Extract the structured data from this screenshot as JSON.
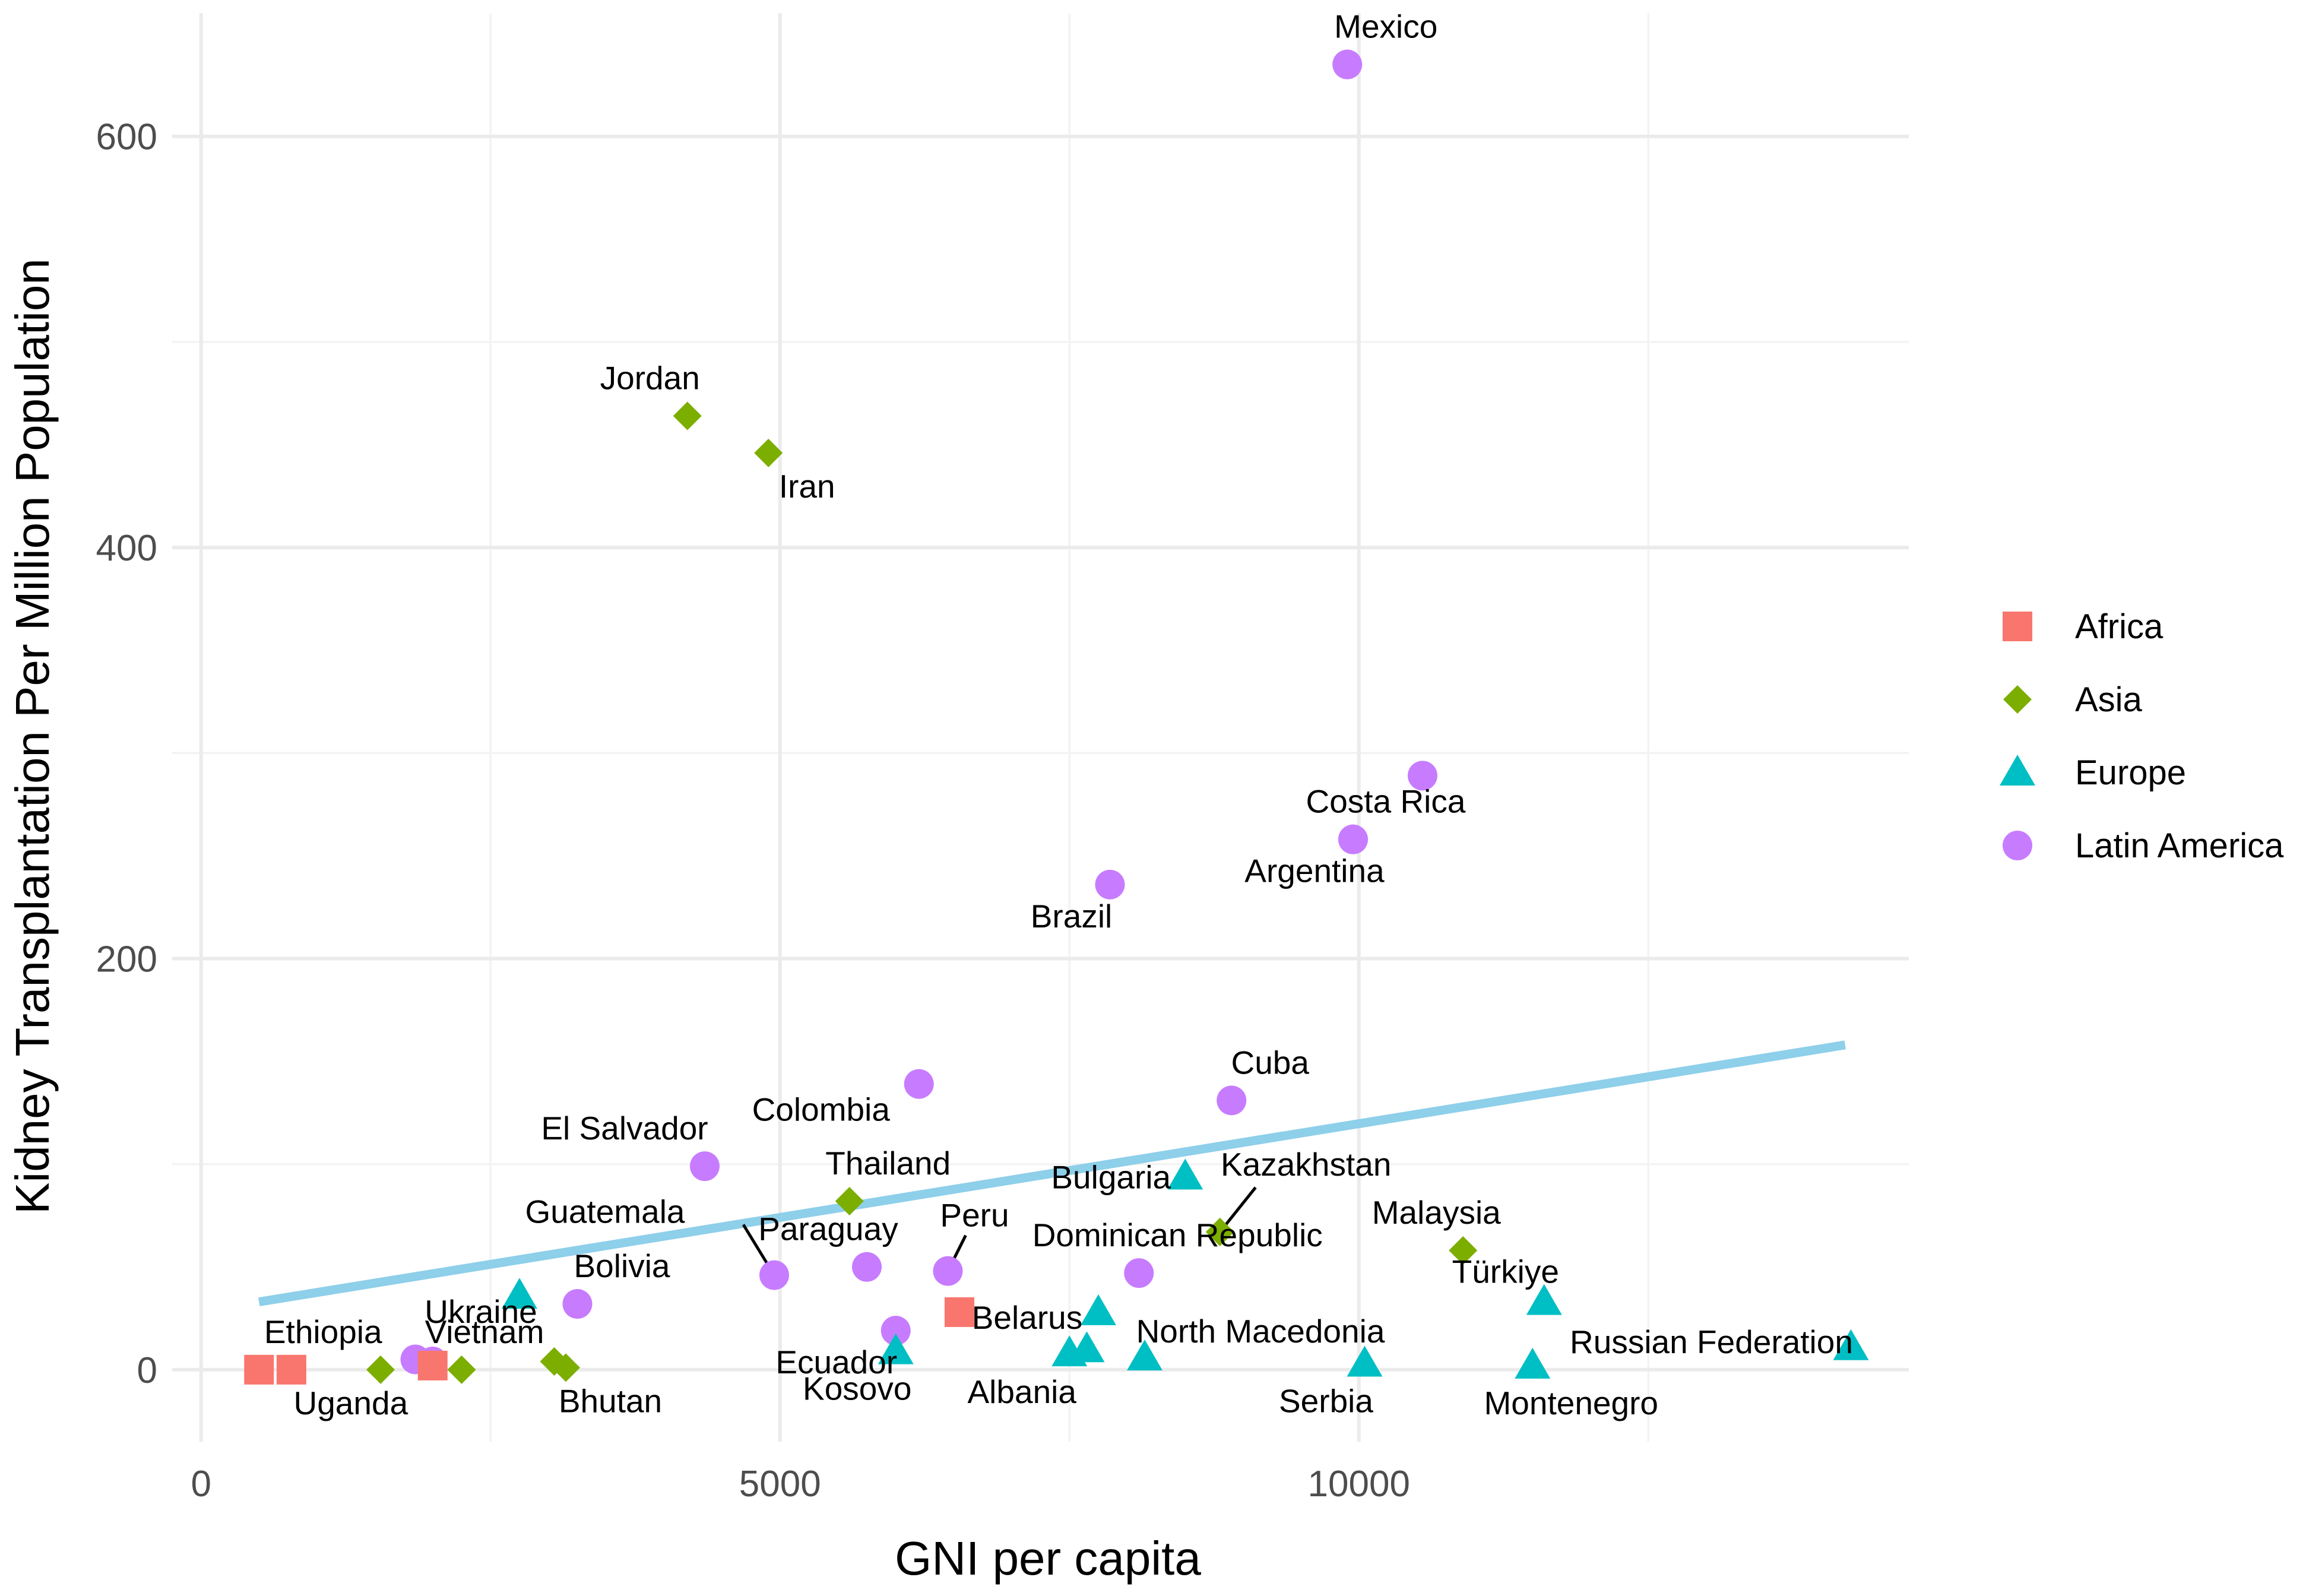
{
  "chart_data": {
    "type": "scatter",
    "title": "",
    "xlabel": "GNI per capita",
    "ylabel": "Kidney Transplantation Per Million Population",
    "xlim": [
      -250,
      14750
    ],
    "ylim": [
      -35,
      660
    ],
    "x_ticks": [
      0,
      5000,
      10000
    ],
    "x_tick_labels": [
      "0",
      "5000",
      "10000"
    ],
    "x_minor_ticks": [
      2500,
      7500,
      12500
    ],
    "y_ticks": [
      0,
      200,
      400,
      600
    ],
    "y_tick_labels": [
      "0",
      "200",
      "400",
      "600"
    ],
    "y_minor_ticks": [
      100,
      300,
      500
    ],
    "grid": true,
    "legend_position": "right",
    "groups": [
      {
        "name": "Africa",
        "color": "#F8766D",
        "shape": "square"
      },
      {
        "name": "Asia",
        "color": "#7CAE00",
        "shape": "diamond"
      },
      {
        "name": "Europe",
        "color": "#00BFC4",
        "shape": "triangle"
      },
      {
        "name": "Latin America",
        "color": "#C77CFF",
        "shape": "circle"
      }
    ],
    "trend_line": {
      "x": [
        500,
        14200
      ],
      "y": [
        33,
        158
      ],
      "color": "#8ECFEA"
    },
    "points": [
      {
        "label": "Mexico",
        "group": "Latin America",
        "x": 9900,
        "y": 635
      },
      {
        "label": "",
        "group": "Latin America",
        "x": 10550,
        "y": 289
      },
      {
        "label": "Costa Rica",
        "group": "Latin America",
        "x": 9950,
        "y": 258
      },
      {
        "label": "Argentina",
        "group": "Latin America",
        "x": 9950,
        "y": 258
      },
      {
        "label": "Brazil",
        "group": "Latin America",
        "x": 7850,
        "y": 236
      },
      {
        "label": "Colombia",
        "group": "Latin America",
        "x": 6200,
        "y": 139
      },
      {
        "label": "Cuba",
        "group": "Latin America",
        "x": 8900,
        "y": 131
      },
      {
        "label": "El Salvador",
        "group": "Latin America",
        "x": 4350,
        "y": 99
      },
      {
        "label": "Guatemala",
        "group": "Latin America",
        "x": 4950,
        "y": 46
      },
      {
        "label": "Paraguay",
        "group": "Latin America",
        "x": 5750,
        "y": 50
      },
      {
        "label": "Peru",
        "group": "Latin America",
        "x": 6450,
        "y": 48
      },
      {
        "label": "Dominican Republic",
        "group": "Latin America",
        "x": 8100,
        "y": 47
      },
      {
        "label": "Bolivia",
        "group": "Latin America",
        "x": 3250,
        "y": 32
      },
      {
        "label": "Ecuador",
        "group": "Latin America",
        "x": 6000,
        "y": 19
      },
      {
        "label": "",
        "group": "Latin America",
        "x": 1850,
        "y": 5
      },
      {
        "label": "",
        "group": "Latin America",
        "x": 2000,
        "y": 4
      },
      {
        "label": "Jordan",
        "group": "Asia",
        "x": 4200,
        "y": 464
      },
      {
        "label": "Iran",
        "group": "Asia",
        "x": 4900,
        "y": 446
      },
      {
        "label": "Thailand",
        "group": "Asia",
        "x": 5600,
        "y": 82
      },
      {
        "label": "Kazakhstan",
        "group": "Asia",
        "x": 8800,
        "y": 67
      },
      {
        "label": "Malaysia",
        "group": "Asia",
        "x": 10900,
        "y": 58
      },
      {
        "label": "Vietnam",
        "group": "Asia",
        "x": 1550,
        "y": 0
      },
      {
        "label": "",
        "group": "Asia",
        "x": 2250,
        "y": 0
      },
      {
        "label": "",
        "group": "Asia",
        "x": 3050,
        "y": 4
      },
      {
        "label": "Bhutan",
        "group": "Asia",
        "x": 3150,
        "y": 1
      },
      {
        "label": "Bulgaria",
        "group": "Europe",
        "x": 8500,
        "y": 94
      },
      {
        "label": "Ukraine",
        "group": "Europe",
        "x": 2750,
        "y": 36
      },
      {
        "label": "Belarus",
        "group": "Europe",
        "x": 7750,
        "y": 28
      },
      {
        "label": "Türkiye",
        "group": "Europe",
        "x": 11600,
        "y": 33
      },
      {
        "label": "Kosovo",
        "group": "Europe",
        "x": 6000,
        "y": 9
      },
      {
        "label": "Albania",
        "group": "Europe",
        "x": 7500,
        "y": 8
      },
      {
        "label": "",
        "group": "Europe",
        "x": 7650,
        "y": 10
      },
      {
        "label": "North Macedonia",
        "group": "Europe",
        "x": 8150,
        "y": 6
      },
      {
        "label": "Serbia",
        "group": "Europe",
        "x": 10050,
        "y": 3
      },
      {
        "label": "Montenegro",
        "group": "Europe",
        "x": 11500,
        "y": 2
      },
      {
        "label": "Russian Federation",
        "group": "Europe",
        "x": 14250,
        "y": 11
      },
      {
        "label": "Ethiopia",
        "group": "Africa",
        "x": 500,
        "y": 0
      },
      {
        "label": "Uganda",
        "group": "Africa",
        "x": 780,
        "y": 0
      },
      {
        "label": "",
        "group": "Africa",
        "x": 2000,
        "y": 2
      },
      {
        "label": "",
        "group": "Africa",
        "x": 6550,
        "y": 28
      }
    ]
  }
}
